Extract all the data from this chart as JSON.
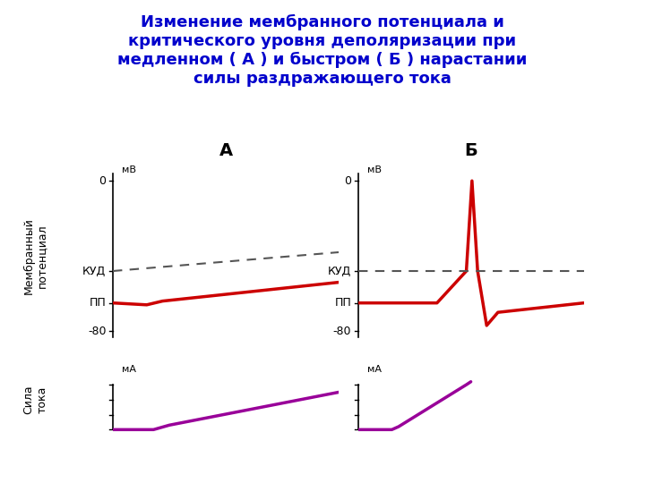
{
  "title_line1": "Изменение мембранного потенциала и",
  "title_line2": "критического уровня деполяризации при",
  "title_line3": "медленном ( А ) и быстром ( Б ) нарастании",
  "title_line4": "силы раздражающего тока",
  "title_color": "#0000cc",
  "title_fontsize": 13,
  "label_A": "А",
  "label_B": "Б",
  "ylabel_membrane": "Мембранный\nпотенциал",
  "ylabel_force": "Сила\nтока",
  "unit_mv": "мВ",
  "unit_ma": "мА",
  "label_kud": "КУД",
  "label_pp": "ПП",
  "bg_color": "#ffffff",
  "red_color": "#cc0000",
  "dashed_color": "#555555",
  "purple_color": "#990099",
  "axes_color": "#000000",
  "pp_level": -65,
  "kud_level": -48,
  "ylim_mem": [
    -85,
    5
  ],
  "xlim": [
    0,
    10
  ]
}
